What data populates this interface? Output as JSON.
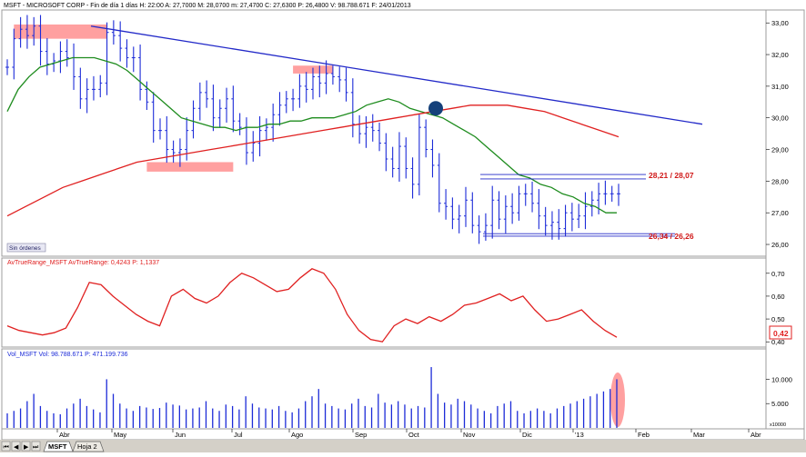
{
  "window": {
    "header_info": "MSFT - MICROSOFT CORP - Fin de día 1 días  H: 22:00  A: 27,7000  M: 28,0700  m: 27,4700  C: 27,6300  P: 26,4800  V: 98.788.671  F: 24/01/2013"
  },
  "tabs": [
    {
      "label": "MSFT",
      "active": true
    },
    {
      "label": "Hoja 2",
      "active": false
    }
  ],
  "nav_buttons": [
    "first",
    "prev",
    "next",
    "last"
  ],
  "colors": {
    "price_bars": "#1c2bd8",
    "ma_short": "#1e8c1e",
    "ma_long": "#e02020",
    "trendline": "#2229c8",
    "highlight": "#ff8080",
    "atr_line": "#e02020",
    "volume": "#1c2bd8",
    "volume_highlight": "#ff8080",
    "marker": "#14407a"
  },
  "chart_data": [
    {
      "type": "line",
      "panel": "price",
      "style": "ohlc",
      "yticks": [
        "33,00",
        "32,00",
        "31,00",
        "30,00",
        "29,00",
        "28,00",
        "27,00",
        "26,00"
      ],
      "ylim": [
        25.8,
        33.15
      ],
      "series": [
        {
          "description": "daily close (approx.)",
          "values": [
            31.6,
            32.5,
            32.8,
            32.6,
            32.9,
            32.1,
            31.7,
            31.8,
            32.1,
            31.9,
            31.3,
            30.6,
            30.9,
            30.9,
            31.1,
            32.7,
            32.6,
            32.2,
            31.9,
            31.9,
            30.9,
            30.5,
            29.6,
            29.6,
            29.0,
            28.9,
            29.0,
            29.6,
            30.3,
            30.8,
            30.6,
            30.0,
            30.3,
            30.6,
            29.9,
            29.7,
            28.9,
            29.2,
            29.6,
            29.7,
            30.1,
            30.4,
            30.6,
            30.6,
            31.0,
            30.9,
            31.3,
            31.1,
            31.4,
            31.3,
            31.2,
            30.8,
            29.8,
            29.5,
            29.7,
            29.6,
            29.2,
            28.7,
            28.4,
            29.1,
            28.4,
            27.9,
            29.7,
            29.0,
            28.5,
            27.3,
            27.2,
            26.8,
            26.9,
            27.4,
            26.6,
            26.4,
            26.6,
            27.4,
            26.8,
            27.2,
            27.0,
            27.6,
            27.6,
            27.3,
            26.9,
            26.6,
            26.7,
            26.5,
            27.0,
            26.8,
            26.9,
            27.2,
            27.4,
            27.6,
            27.6,
            27.6,
            27.6
          ]
        },
        {
          "name": "",
          "description": "short moving average (approx.)",
          "values": [
            30.2,
            30.9,
            31.3,
            31.6,
            31.7,
            31.8,
            31.9,
            31.9,
            31.9,
            31.8,
            31.7,
            31.5,
            31.2,
            30.9,
            30.6,
            30.3,
            30.0,
            29.9,
            29.8,
            29.7,
            29.7,
            29.6,
            29.7,
            29.7,
            29.8,
            29.8,
            29.9,
            29.9,
            30.0,
            30.0,
            30.0,
            30.1,
            30.2,
            30.4,
            30.5,
            30.6,
            30.5,
            30.3,
            30.2,
            30.1,
            30.0,
            29.8,
            29.6,
            29.4,
            29.1,
            28.8,
            28.5,
            28.2,
            28.1,
            27.9,
            27.8,
            27.6,
            27.5,
            27.3,
            27.2,
            27.0,
            27.0
          ]
        },
        {
          "name": "",
          "description": "long moving average (approx.)",
          "values": [
            26.9,
            27.2,
            27.5,
            27.8,
            28.0,
            28.2,
            28.4,
            28.6,
            28.7,
            28.8,
            28.9,
            29.0,
            29.1,
            29.2,
            29.3,
            29.4,
            29.5,
            29.6,
            29.7,
            29.8,
            29.9,
            30.0,
            30.1,
            30.2,
            30.3,
            30.4,
            30.4,
            30.4,
            30.3,
            30.2,
            30.0,
            29.8,
            29.6,
            29.4
          ]
        },
        {
          "description": "resistance trendline",
          "values": [
            32.9,
            29.8
          ]
        }
      ],
      "annotations": [
        {
          "label": "Sin órdenes"
        },
        {
          "label": "28,21 / 28,07",
          "values": [
            28.21,
            28.07
          ]
        },
        {
          "label": "26,34 / 26,26",
          "values": [
            26.34,
            26.26
          ]
        }
      ]
    },
    {
      "type": "line",
      "panel": "indicator",
      "title": "AvTrueRange_MSFT  AvTrueRange: 0,4243  P: 1,1337",
      "yticks": [
        "0,70",
        "0,60",
        "0,50",
        "0,40"
      ],
      "ylim": [
        0.385,
        0.735
      ],
      "current_value_label": "0,42",
      "series": [
        {
          "name": "AvTrueRange",
          "values": [
            0.47,
            0.45,
            0.44,
            0.43,
            0.44,
            0.46,
            0.55,
            0.66,
            0.65,
            0.6,
            0.56,
            0.52,
            0.49,
            0.47,
            0.6,
            0.63,
            0.59,
            0.57,
            0.6,
            0.66,
            0.7,
            0.68,
            0.65,
            0.62,
            0.63,
            0.68,
            0.72,
            0.7,
            0.63,
            0.52,
            0.45,
            0.41,
            0.4,
            0.47,
            0.5,
            0.48,
            0.51,
            0.49,
            0.52,
            0.56,
            0.57,
            0.59,
            0.61,
            0.58,
            0.6,
            0.54,
            0.49,
            0.5,
            0.52,
            0.54,
            0.49,
            0.45,
            0.42
          ]
        }
      ]
    },
    {
      "type": "bar",
      "panel": "volume",
      "title": "Vol_MSFT  Vol: 98.788.671  P: 471.199.736",
      "yticks": [
        "10.000",
        "5.000"
      ],
      "ylim": [
        0,
        14000
      ],
      "unit_note": "x10000",
      "series": [
        {
          "name": "Vol",
          "description": "daily volume in units of 10.000 shares (approx.)",
          "values": [
            3000,
            3500,
            4000,
            5500,
            7000,
            4500,
            3500,
            3000,
            2800,
            4000,
            5000,
            6000,
            4500,
            3800,
            3200,
            10000,
            7000,
            5000,
            4000,
            3500,
            4500,
            4200,
            3900,
            4100,
            5200,
            4800,
            4600,
            3800,
            4000,
            4200,
            5500,
            4000,
            3500,
            4800,
            4500,
            3800,
            6500,
            5000,
            4200,
            4000,
            3800,
            4500,
            3500,
            3200,
            4000,
            5500,
            6500,
            8000,
            5000,
            4500,
            4000,
            3800,
            5000,
            6000,
            4500,
            4200,
            7000,
            5200,
            4800,
            5500,
            4800,
            4000,
            4500,
            4200,
            12500,
            7000,
            5200,
            4800,
            6000,
            5500,
            4800,
            4000,
            3500,
            3000,
            4500,
            5000,
            5500,
            3500,
            3000,
            3500,
            4000,
            3500,
            3000,
            4000,
            4500,
            5000,
            5500,
            6000,
            6500,
            7000,
            7500,
            8000,
            10000
          ]
        }
      ]
    },
    {
      "type": "line",
      "panel": "time_axis",
      "x_labels": [
        "Abr",
        "May",
        "Jun",
        "Jul",
        "Ago",
        "Sep",
        "Oct",
        "Nov",
        "Dic",
        "'13",
        "Feb",
        "Mar",
        "Abr"
      ]
    }
  ]
}
